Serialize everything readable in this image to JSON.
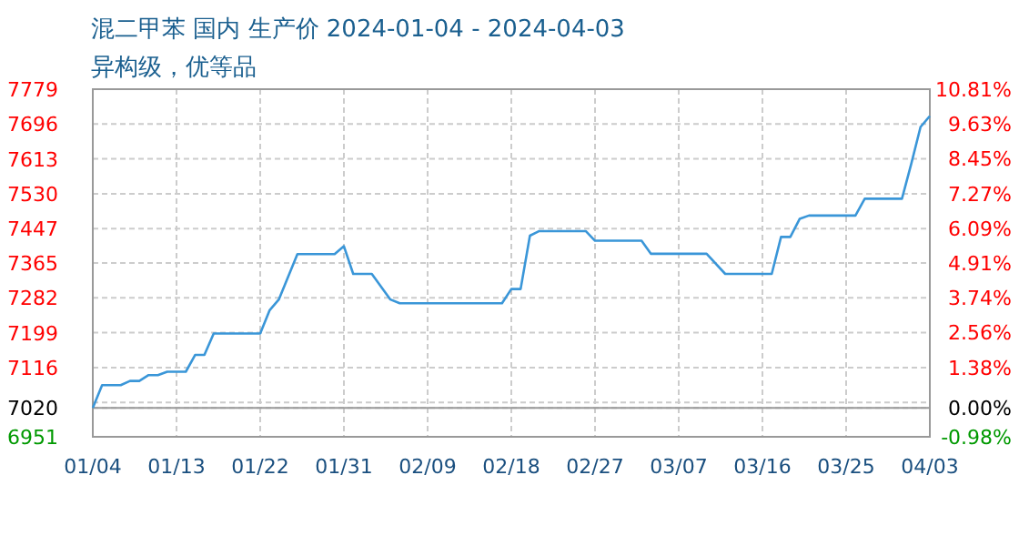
{
  "chart_data": {
    "type": "line",
    "title": "混二甲苯 国内 生产价 2024-01-04 - 2024-04-03",
    "subtitle": "异构级，优等品",
    "x": [
      "2024-01-04",
      "2024-01-05",
      "2024-01-07",
      "2024-01-08",
      "2024-01-09",
      "2024-01-10",
      "2024-01-11",
      "2024-01-12",
      "2024-01-14",
      "2024-01-15",
      "2024-01-16",
      "2024-01-17",
      "2024-01-22",
      "2024-01-23",
      "2024-01-24",
      "2024-01-26",
      "2024-01-30",
      "2024-01-31",
      "2024-02-01",
      "2024-02-03",
      "2024-02-05",
      "2024-02-06",
      "2024-02-17",
      "2024-02-18",
      "2024-02-19",
      "2024-02-20",
      "2024-02-21",
      "2024-02-26",
      "2024-02-27",
      "2024-03-03",
      "2024-03-04",
      "2024-03-10",
      "2024-03-12",
      "2024-03-17",
      "2024-03-18",
      "2024-03-19",
      "2024-03-20",
      "2024-03-21",
      "2024-03-26",
      "2024-03-27",
      "2024-03-31",
      "2024-04-01",
      "2024-04-02",
      "2024-04-03"
    ],
    "series": [
      {
        "color": "#3a96d8",
        "values": [
          7020,
          7074,
          7074,
          7084,
          7084,
          7098,
          7098,
          7106,
          7106,
          7146,
          7146,
          7197,
          7197,
          7252,
          7278,
          7386,
          7386,
          7405,
          7339,
          7339,
          7278,
          7269,
          7269,
          7303,
          7303,
          7430,
          7441,
          7441,
          7418,
          7418,
          7387,
          7387,
          7339,
          7339,
          7427,
          7427,
          7470,
          7478,
          7478,
          7518,
          7518,
          7601,
          7689,
          7715
        ]
      }
    ],
    "xlim": [
      "2024-01-04",
      "2024-04-03"
    ],
    "xticks": [
      {
        "value": "2024-01-04",
        "label": "01/04"
      },
      {
        "value": "2024-01-13",
        "label": "01/13"
      },
      {
        "value": "2024-01-22",
        "label": "01/22"
      },
      {
        "value": "2024-01-31",
        "label": "01/31"
      },
      {
        "value": "2024-02-09",
        "label": "02/09"
      },
      {
        "value": "2024-02-18",
        "label": "02/18"
      },
      {
        "value": "2024-02-27",
        "label": "02/27"
      },
      {
        "value": "2024-03-07",
        "label": "03/07"
      },
      {
        "value": "2024-03-16",
        "label": "03/16"
      },
      {
        "value": "2024-03-25",
        "label": "03/25"
      },
      {
        "value": "2024-04-03",
        "label": "04/03"
      }
    ],
    "ylim": [
      6951,
      7779
    ],
    "yticks": [
      7779,
      7696,
      7613,
      7530,
      7447,
      7365,
      7282,
      7199,
      7116,
      {
        "value": 7033,
        "label": null
      },
      7020,
      6951
    ],
    "y2lim": [
      -0.98,
      10.81
    ],
    "y2ticks": [
      {
        "value": 10.81,
        "label": "10.81%"
      },
      {
        "value": 9.63,
        "label": "9.63%"
      },
      {
        "value": 8.45,
        "label": "8.45%"
      },
      {
        "value": 7.27,
        "label": "7.27%"
      },
      {
        "value": 6.09,
        "label": "6.09%"
      },
      {
        "value": 4.91,
        "label": "4.91%"
      },
      {
        "value": 3.74,
        "label": "3.74%"
      },
      {
        "value": 2.56,
        "label": "2.56%"
      },
      {
        "value": 1.38,
        "label": "1.38%"
      },
      {
        "value": 0,
        "label": "0.00%"
      },
      {
        "value": -0.98,
        "label": "-0.98%"
      }
    ],
    "ref_lines": [
      {
        "axis": "y2",
        "value": 0,
        "color": "#999999"
      }
    ],
    "grid": true,
    "marker": "none",
    "line_style": "solid"
  }
}
